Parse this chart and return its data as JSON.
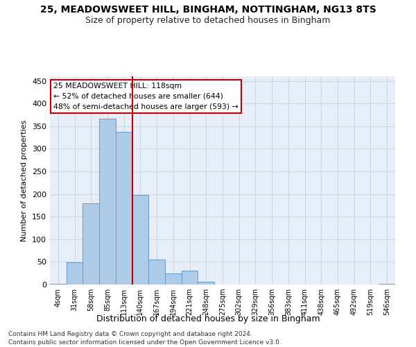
{
  "title1": "25, MEADOWSWEET HILL, BINGHAM, NOTTINGHAM, NG13 8TS",
  "title2": "Size of property relative to detached houses in Bingham",
  "xlabel": "Distribution of detached houses by size in Bingham",
  "ylabel": "Number of detached properties",
  "bin_labels": [
    "4sqm",
    "31sqm",
    "58sqm",
    "85sqm",
    "113sqm",
    "140sqm",
    "167sqm",
    "194sqm",
    "221sqm",
    "248sqm",
    "275sqm",
    "302sqm",
    "329sqm",
    "356sqm",
    "383sqm",
    "411sqm",
    "438sqm",
    "465sqm",
    "492sqm",
    "519sqm",
    "546sqm"
  ],
  "bar_values": [
    1,
    49,
    180,
    367,
    338,
    198,
    55,
    25,
    30,
    6,
    0,
    0,
    0,
    0,
    0,
    0,
    0,
    0,
    0,
    0,
    2
  ],
  "bar_color": "#aecce8",
  "bar_edge_color": "#6699cc",
  "grid_color": "#c8d4e8",
  "bg_color": "#e8eef8",
  "vline_x": 4.0,
  "vline_color": "#bb0000",
  "annotation_line1": "25 MEADOWSWEET HILL: 118sqm",
  "annotation_line2": "← 52% of detached houses are smaller (644)",
  "annotation_line3": "48% of semi-detached houses are larger (593) →",
  "annotation_box_color": "#ffffff",
  "annotation_box_edge": "#bb0000",
  "footer1": "Contains HM Land Registry data © Crown copyright and database right 2024.",
  "footer2": "Contains public sector information licensed under the Open Government Licence v3.0.",
  "ylim": [
    0,
    460
  ],
  "yticks": [
    0,
    50,
    100,
    150,
    200,
    250,
    300,
    350,
    400,
    450
  ],
  "figsize": [
    6.0,
    5.0
  ],
  "dpi": 100
}
